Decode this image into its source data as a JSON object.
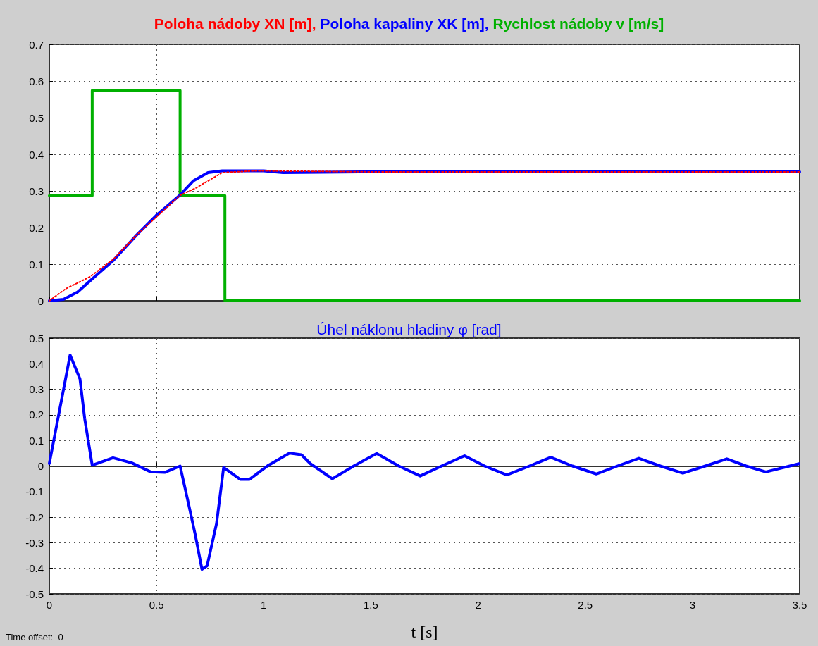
{
  "chart_data": [
    {
      "type": "line",
      "legend": "top",
      "tick_labels": "y",
      "grid": true,
      "xlim": [
        0,
        3.5
      ],
      "xticks": [
        0,
        0.5,
        1,
        1.5,
        2,
        2.5,
        3,
        3.5
      ],
      "ylim": [
        0,
        0.7
      ],
      "yticks": [
        0,
        0.1,
        0.2,
        0.3,
        0.4,
        0.5,
        0.6,
        0.7
      ],
      "series": [
        {
          "name": "Poloha nádoby XN [m],",
          "color": "#ff0000",
          "line_style": "dotted",
          "x": [
            0,
            0.077,
            0.188,
            0.298,
            0.408,
            0.61,
            0.684,
            0.806,
            0.96,
            1.5,
            2,
            2.5,
            3,
            3.5
          ],
          "values": [
            0,
            0.033,
            0.065,
            0.113,
            0.18,
            0.288,
            0.308,
            0.35,
            0.355,
            0.352,
            0.352,
            0.352,
            0.352,
            0.352
          ]
        },
        {
          "name": "Poloha kapaliny XK [m],",
          "color": "#0000ff",
          "line_style": "solid",
          "x": [
            0,
            0.066,
            0.132,
            0.21,
            0.298,
            0.408,
            0.497,
            0.61,
            0.673,
            0.74,
            0.806,
            0.883,
            1,
            1.09,
            1.5,
            2,
            2.5,
            3,
            3.5
          ],
          "values": [
            0,
            0.004,
            0.024,
            0.065,
            0.11,
            0.18,
            0.232,
            0.289,
            0.328,
            0.35,
            0.355,
            0.355,
            0.355,
            0.35,
            0.352,
            0.352,
            0.352,
            0.352,
            0.352
          ]
        },
        {
          "name": "Rychlost nádoby v [m/s]",
          "color": "#00b000",
          "type": "step",
          "line_style": "solid",
          "x": [
            0,
            0.2,
            0.61,
            0.819,
            3.5
          ],
          "values": [
            0.287,
            0.574,
            0.287,
            0,
            0
          ]
        }
      ]
    },
    {
      "type": "line",
      "title": "Úhel náklonu hladiny φ [rad]",
      "xlabel": "t [s]",
      "annotations": [
        "Time offset:  0"
      ],
      "grid": true,
      "xlim": [
        0,
        3.5
      ],
      "xticks": [
        0,
        0.5,
        1,
        1.5,
        2,
        2.5,
        3,
        3.5
      ],
      "ylim": [
        -0.5,
        0.5
      ],
      "yticks": [
        -0.5,
        -0.4,
        -0.3,
        -0.2,
        -0.1,
        0,
        0.1,
        0.2,
        0.3,
        0.4,
        0.5
      ],
      "series": [
        {
          "color": "#0000ff",
          "line_style": "solid",
          "x": [
            0,
            0.097,
            0.143,
            0.165,
            0.2,
            0.297,
            0.385,
            0.473,
            0.538,
            0.61,
            0.648,
            0.681,
            0.712,
            0.736,
            0.78,
            0.813,
            0.89,
            0.934,
            1.022,
            1.12,
            1.176,
            1.218,
            1.32,
            1.42,
            1.527,
            1.63,
            1.73,
            1.83,
            1.937,
            2.03,
            2.134,
            2.24,
            2.339,
            2.44,
            2.551,
            2.65,
            2.75,
            2.85,
            2.955,
            3.06,
            3.16,
            3.25,
            3.342,
            3.497
          ],
          "values": [
            0.01,
            0.434,
            0.34,
            0.185,
            0.003,
            0.032,
            0.012,
            -0.023,
            -0.025,
            0,
            -0.143,
            -0.27,
            -0.404,
            -0.39,
            -0.225,
            -0.006,
            -0.052,
            -0.052,
            0.003,
            0.05,
            0.044,
            0.009,
            -0.05,
            0,
            0.049,
            0,
            -0.039,
            0,
            0.04,
            0,
            -0.035,
            0,
            0.034,
            0,
            -0.031,
            0,
            0.03,
            0,
            -0.028,
            0,
            0.028,
            0,
            -0.023,
            0.009
          ]
        }
      ]
    }
  ]
}
